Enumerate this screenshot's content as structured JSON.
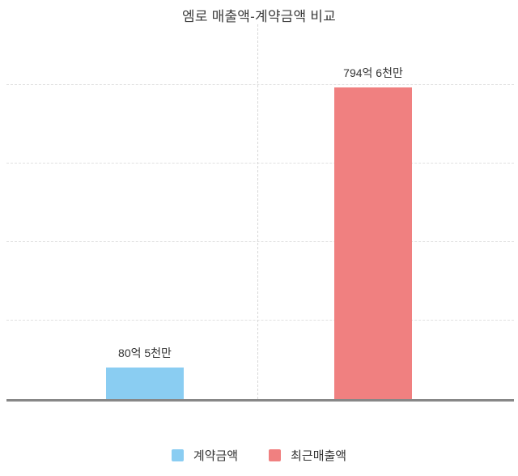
{
  "title": "엠로 매출액-계약금액 비교",
  "chart_data": {
    "type": "bar",
    "title": "엠로 매출액-계약금액 비교",
    "categories": [
      "계약금액",
      "최근매출액"
    ],
    "values": [
      80.5,
      794.6
    ],
    "value_unit": "억원",
    "value_labels": [
      "80억 5천만",
      "794억 6천만"
    ],
    "xlabel": "",
    "ylabel": "",
    "ylim": [
      0,
      800
    ],
    "gridline_values": [
      200,
      400,
      600,
      800
    ],
    "grid": true,
    "grid_style": "dashed",
    "y_tick_labels_visible": false,
    "legend_position": "bottom",
    "colors": [
      "#8ACDF2",
      "#F08080"
    ],
    "axis_color": "#878787",
    "gridline_color": "#e0e0e0",
    "text_color": "#333333"
  },
  "legend": {
    "items": [
      {
        "label": "계약금액",
        "color": "#8ACDF2"
      },
      {
        "label": "최근매출액",
        "color": "#F08080"
      }
    ]
  }
}
